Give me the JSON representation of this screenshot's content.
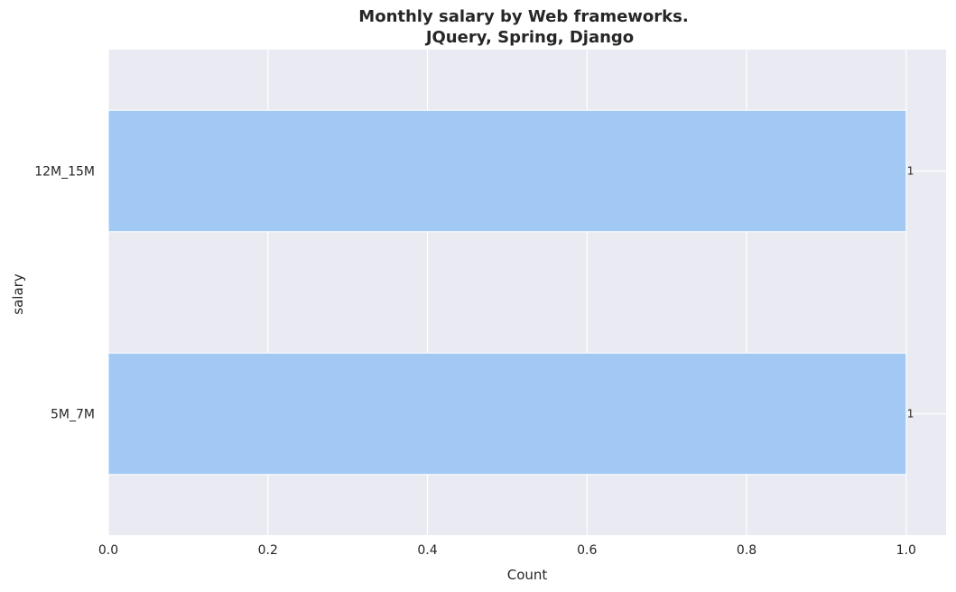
{
  "chart_data": {
    "type": "bar",
    "orientation": "horizontal",
    "title": "Monthly salary by Web frameworks.",
    "subtitle": "JQuery, Spring, Django",
    "xlabel": "Count",
    "ylabel": "salary",
    "categories": [
      "12M_15M",
      "5M_7M"
    ],
    "values": [
      1,
      1
    ],
    "data_labels": [
      "1",
      "1"
    ],
    "xlim": [
      0,
      1.05
    ],
    "xticks": [
      0.0,
      0.2,
      0.4,
      0.6,
      0.8,
      1.0
    ],
    "xtick_labels": [
      "0.0",
      "0.2",
      "0.4",
      "0.6",
      "0.8",
      "1.0"
    ],
    "grid": true,
    "colors": {
      "bar": "#a1c9f4",
      "plot_background": "#eaeaf2",
      "grid": "#ffffff",
      "text": "#262626"
    }
  }
}
